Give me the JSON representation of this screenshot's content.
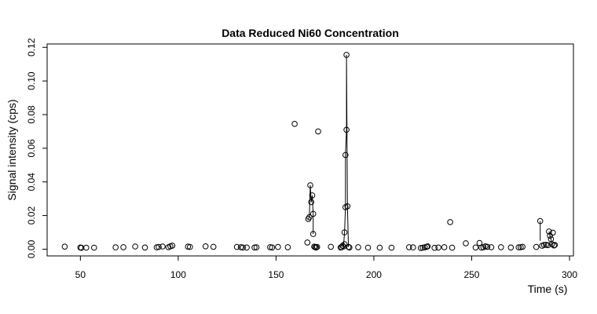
{
  "chart_data": {
    "type": "scatter",
    "title": "Data Reduced Ni60 Concentration",
    "xlabel": "Time (s)",
    "ylabel": "Signal intensity (cps)",
    "xlim": [
      33,
      302
    ],
    "ylim": [
      -0.004,
      0.122
    ],
    "x_ticks": [
      50,
      100,
      150,
      200,
      250,
      300
    ],
    "y_ticks": [
      0.0,
      0.02,
      0.04,
      0.06,
      0.08,
      0.1,
      0.12
    ],
    "x_tick_labels": [
      "50",
      "100",
      "150",
      "200",
      "250",
      "300"
    ],
    "y_tick_labels": [
      "0.00",
      "0.02",
      "0.04",
      "0.06",
      "0.08",
      "0.10",
      "0.12"
    ],
    "grid": false,
    "legend": "none",
    "marker": "open-circle",
    "line_color": "#000000",
    "points": [
      {
        "x": 42,
        "y": 0.0015
      },
      {
        "x": 50,
        "y": 0.001
      },
      {
        "x": 50.5,
        "y": 0.0008
      },
      {
        "x": 53,
        "y": 0.0009
      },
      {
        "x": 57,
        "y": 0.0009
      },
      {
        "x": 68,
        "y": 0.0011
      },
      {
        "x": 72,
        "y": 0.0012
      },
      {
        "x": 78,
        "y": 0.0016
      },
      {
        "x": 83,
        "y": 0.001
      },
      {
        "x": 89,
        "y": 0.0011
      },
      {
        "x": 90,
        "y": 0.0013
      },
      {
        "x": 92,
        "y": 0.0016
      },
      {
        "x": 95,
        "y": 0.0012
      },
      {
        "x": 96,
        "y": 0.0017
      },
      {
        "x": 97,
        "y": 0.0021
      },
      {
        "x": 105,
        "y": 0.0015
      },
      {
        "x": 106,
        "y": 0.0013
      },
      {
        "x": 114,
        "y": 0.0017
      },
      {
        "x": 118,
        "y": 0.0014
      },
      {
        "x": 130,
        "y": 0.0013
      },
      {
        "x": 132,
        "y": 0.0012
      },
      {
        "x": 133,
        "y": 0.001
      },
      {
        "x": 135,
        "y": 0.001
      },
      {
        "x": 139,
        "y": 0.001
      },
      {
        "x": 140,
        "y": 0.0011
      },
      {
        "x": 147,
        "y": 0.0012
      },
      {
        "x": 148,
        "y": 0.001
      },
      {
        "x": 151,
        "y": 0.0013
      },
      {
        "x": 156,
        "y": 0.0012
      },
      {
        "x": 159.5,
        "y": 0.0745
      },
      {
        "x": 166,
        "y": 0.004
      },
      {
        "x": 166.5,
        "y": 0.018
      },
      {
        "x": 167,
        "y": 0.019
      },
      {
        "x": 167.5,
        "y": 0.038
      },
      {
        "x": 168,
        "y": 0.028
      },
      {
        "x": 168.5,
        "y": 0.032
      },
      {
        "x": 169,
        "y": 0.021
      },
      {
        "x": 169,
        "y": 0.009
      },
      {
        "x": 169.5,
        "y": 0.0015
      },
      {
        "x": 170,
        "y": 0.0012
      },
      {
        "x": 170.5,
        "y": 0.001
      },
      {
        "x": 171,
        "y": 0.0013
      },
      {
        "x": 171.5,
        "y": 0.07
      },
      {
        "x": 178,
        "y": 0.0014
      },
      {
        "x": 183,
        "y": 0.001
      },
      {
        "x": 183.5,
        "y": 0.0012
      },
      {
        "x": 184,
        "y": 0.002
      },
      {
        "x": 184.5,
        "y": 0.0016
      },
      {
        "x": 185,
        "y": 0.01
      },
      {
        "x": 185,
        "y": 0.003
      },
      {
        "x": 185.5,
        "y": 0.025
      },
      {
        "x": 185.5,
        "y": 0.056
      },
      {
        "x": 186,
        "y": 0.071
      },
      {
        "x": 186,
        "y": 0.1155
      },
      {
        "x": 186.5,
        "y": 0.0255
      },
      {
        "x": 187,
        "y": 0.0013
      },
      {
        "x": 187.5,
        "y": 0.001
      },
      {
        "x": 192,
        "y": 0.0012
      },
      {
        "x": 197,
        "y": 0.0009
      },
      {
        "x": 203,
        "y": 0.0009
      },
      {
        "x": 209,
        "y": 0.0009
      },
      {
        "x": 218,
        "y": 0.0012
      },
      {
        "x": 220,
        "y": 0.0011
      },
      {
        "x": 224,
        "y": 0.0007
      },
      {
        "x": 225,
        "y": 0.0009
      },
      {
        "x": 226,
        "y": 0.0011
      },
      {
        "x": 227,
        "y": 0.0014
      },
      {
        "x": 227.5,
        "y": 0.0017
      },
      {
        "x": 231,
        "y": 0.0008
      },
      {
        "x": 233,
        "y": 0.001
      },
      {
        "x": 236,
        "y": 0.0012
      },
      {
        "x": 239,
        "y": 0.0161
      },
      {
        "x": 240,
        "y": 0.0009
      },
      {
        "x": 247,
        "y": 0.0035
      },
      {
        "x": 252,
        "y": 0.001
      },
      {
        "x": 254,
        "y": 0.0037
      },
      {
        "x": 255,
        "y": 0.0009
      },
      {
        "x": 256,
        "y": 0.0012
      },
      {
        "x": 257,
        "y": 0.0017
      },
      {
        "x": 258,
        "y": 0.0014
      },
      {
        "x": 260,
        "y": 0.0012
      },
      {
        "x": 265,
        "y": 0.0012
      },
      {
        "x": 270,
        "y": 0.001
      },
      {
        "x": 274,
        "y": 0.0011
      },
      {
        "x": 275,
        "y": 0.0012
      },
      {
        "x": 276,
        "y": 0.0014
      },
      {
        "x": 283,
        "y": 0.0013
      },
      {
        "x": 285,
        "y": 0.0167
      },
      {
        "x": 286,
        "y": 0.002
      },
      {
        "x": 287,
        "y": 0.0025
      },
      {
        "x": 288,
        "y": 0.0026
      },
      {
        "x": 289,
        "y": 0.0024
      },
      {
        "x": 289.5,
        "y": 0.0105
      },
      {
        "x": 290,
        "y": 0.008
      },
      {
        "x": 290.5,
        "y": 0.006
      },
      {
        "x": 291,
        "y": 0.003
      },
      {
        "x": 291.5,
        "y": 0.0098
      },
      {
        "x": 292,
        "y": 0.0022
      },
      {
        "x": 292.5,
        "y": 0.0025
      }
    ],
    "connector_segments": [
      [
        [
          166.5,
          0.018
        ],
        [
          167,
          0.019
        ],
        [
          167.5,
          0.038
        ],
        [
          168,
          0.028
        ],
        [
          168.5,
          0.032
        ],
        [
          169,
          0.021
        ],
        [
          169,
          0.009
        ]
      ],
      [
        [
          184.5,
          0.0016
        ],
        [
          185,
          0.01
        ],
        [
          185.5,
          0.025
        ],
        [
          185.5,
          0.056
        ],
        [
          186,
          0.071
        ],
        [
          186,
          0.1155
        ],
        [
          186.5,
          0.0255
        ],
        [
          187,
          0.0013
        ]
      ],
      [
        [
          285,
          0.0167
        ],
        [
          285,
          0.005
        ]
      ],
      [
        [
          289.5,
          0.0105
        ],
        [
          290,
          0.008
        ],
        [
          290.5,
          0.006
        ],
        [
          291,
          0.003
        ]
      ]
    ]
  }
}
